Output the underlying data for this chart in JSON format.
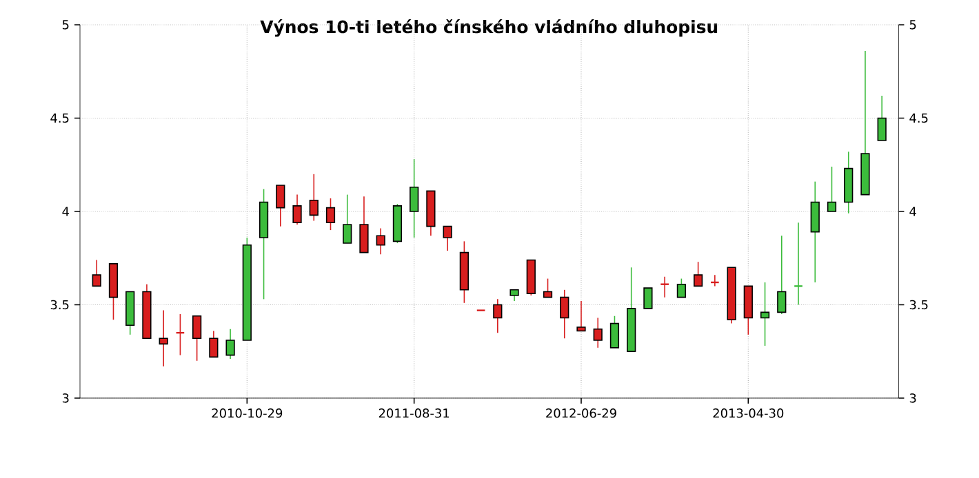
{
  "chart_data": {
    "type": "candlestick",
    "title": "Výnos 10-ti letého čínského vládního dluhopisu",
    "categories": [
      null,
      null,
      null,
      null,
      null,
      null,
      null,
      null,
      null,
      "2010-10-29",
      null,
      null,
      null,
      null,
      null,
      null,
      null,
      null,
      null,
      "2011-08-31",
      null,
      null,
      null,
      null,
      null,
      null,
      null,
      null,
      null,
      "2012-06-29",
      null,
      null,
      null,
      null,
      null,
      null,
      null,
      null,
      null,
      "2013-04-30",
      null,
      null,
      null,
      null,
      null,
      null,
      null,
      null
    ],
    "ohlc": [
      [
        3.66,
        3.74,
        3.6,
        3.6
      ],
      [
        3.72,
        3.72,
        3.42,
        3.54
      ],
      [
        3.39,
        3.57,
        3.34,
        3.57
      ],
      [
        3.57,
        3.61,
        3.32,
        3.32
      ],
      [
        3.32,
        3.47,
        3.17,
        3.29
      ],
      [
        3.35,
        3.45,
        3.23,
        3.35
      ],
      [
        3.44,
        3.44,
        3.2,
        3.32
      ],
      [
        3.32,
        3.36,
        3.22,
        3.22
      ],
      [
        3.23,
        3.37,
        3.21,
        3.31
      ],
      [
        3.31,
        3.86,
        3.31,
        3.82
      ],
      [
        3.86,
        4.12,
        3.53,
        4.05
      ],
      [
        4.14,
        4.14,
        3.92,
        4.02
      ],
      [
        4.03,
        4.09,
        3.93,
        3.94
      ],
      [
        4.06,
        4.2,
        3.95,
        3.98
      ],
      [
        4.02,
        4.07,
        3.9,
        3.94
      ],
      [
        3.83,
        4.09,
        3.83,
        3.93
      ],
      [
        3.93,
        4.08,
        3.78,
        3.78
      ],
      [
        3.87,
        3.91,
        3.77,
        3.82
      ],
      [
        3.84,
        4.04,
        3.83,
        4.03
      ],
      [
        4.0,
        4.28,
        3.86,
        4.13
      ],
      [
        4.11,
        4.11,
        3.87,
        3.92
      ],
      [
        3.92,
        3.92,
        3.79,
        3.86
      ],
      [
        3.78,
        3.84,
        3.51,
        3.58
      ],
      [
        3.47,
        3.47,
        3.47,
        3.47
      ],
      [
        3.5,
        3.53,
        3.35,
        3.43
      ],
      [
        3.55,
        3.58,
        3.52,
        3.58
      ],
      [
        3.74,
        3.74,
        3.55,
        3.56
      ],
      [
        3.57,
        3.64,
        3.54,
        3.54
      ],
      [
        3.54,
        3.58,
        3.32,
        3.43
      ],
      [
        3.38,
        3.52,
        3.36,
        3.36
      ],
      [
        3.37,
        3.43,
        3.27,
        3.31
      ],
      [
        3.27,
        3.44,
        3.27,
        3.4
      ],
      [
        3.25,
        3.7,
        3.25,
        3.48
      ],
      [
        3.48,
        3.59,
        3.48,
        3.59
      ],
      [
        3.61,
        3.65,
        3.54,
        3.61
      ],
      [
        3.54,
        3.64,
        3.54,
        3.61
      ],
      [
        3.66,
        3.73,
        3.6,
        3.6
      ],
      [
        3.62,
        3.66,
        3.6,
        3.62
      ],
      [
        3.7,
        3.7,
        3.4,
        3.42
      ],
      [
        3.6,
        3.6,
        3.34,
        3.43
      ],
      [
        3.43,
        3.62,
        3.28,
        3.46
      ],
      [
        3.46,
        3.87,
        3.45,
        3.57
      ],
      [
        3.6,
        3.94,
        3.5,
        3.6
      ],
      [
        3.89,
        4.16,
        3.62,
        4.05
      ],
      [
        4.0,
        4.24,
        4.0,
        4.05
      ],
      [
        4.05,
        4.32,
        3.99,
        4.23
      ],
      [
        4.09,
        4.86,
        4.09,
        4.31
      ],
      [
        4.38,
        4.62,
        4.38,
        4.5
      ]
    ],
    "colors": [
      "#d81e1e",
      "#d81e1e",
      "#3cbc3c",
      "#d81e1e",
      "#d81e1e",
      "#d81e1e",
      "#d81e1e",
      "#d81e1e",
      "#3cbc3c",
      "#3cbc3c",
      "#3cbc3c",
      "#d81e1e",
      "#d81e1e",
      "#d81e1e",
      "#d81e1e",
      "#3cbc3c",
      "#d81e1e",
      "#d81e1e",
      "#3cbc3c",
      "#3cbc3c",
      "#d81e1e",
      "#d81e1e",
      "#d81e1e",
      "#d81e1e",
      "#d81e1e",
      "#3cbc3c",
      "#d81e1e",
      "#d81e1e",
      "#d81e1e",
      "#d81e1e",
      "#d81e1e",
      "#3cbc3c",
      "#3cbc3c",
      "#3cbc3c",
      "#d81e1e",
      "#3cbc3c",
      "#d81e1e",
      "#d81e1e",
      "#d81e1e",
      "#d81e1e",
      "#3cbc3c",
      "#3cbc3c",
      "#3cbc3c",
      "#3cbc3c",
      "#3cbc3c",
      "#3cbc3c",
      "#3cbc3c",
      "#3cbc3c"
    ],
    "ylim": [
      3,
      5
    ],
    "yticks": [
      3,
      3.5,
      4,
      4.5,
      5
    ],
    "y2lim": [
      3,
      5
    ],
    "y2ticks": [
      3,
      3.5,
      4,
      4.5,
      5
    ],
    "grid": true
  }
}
